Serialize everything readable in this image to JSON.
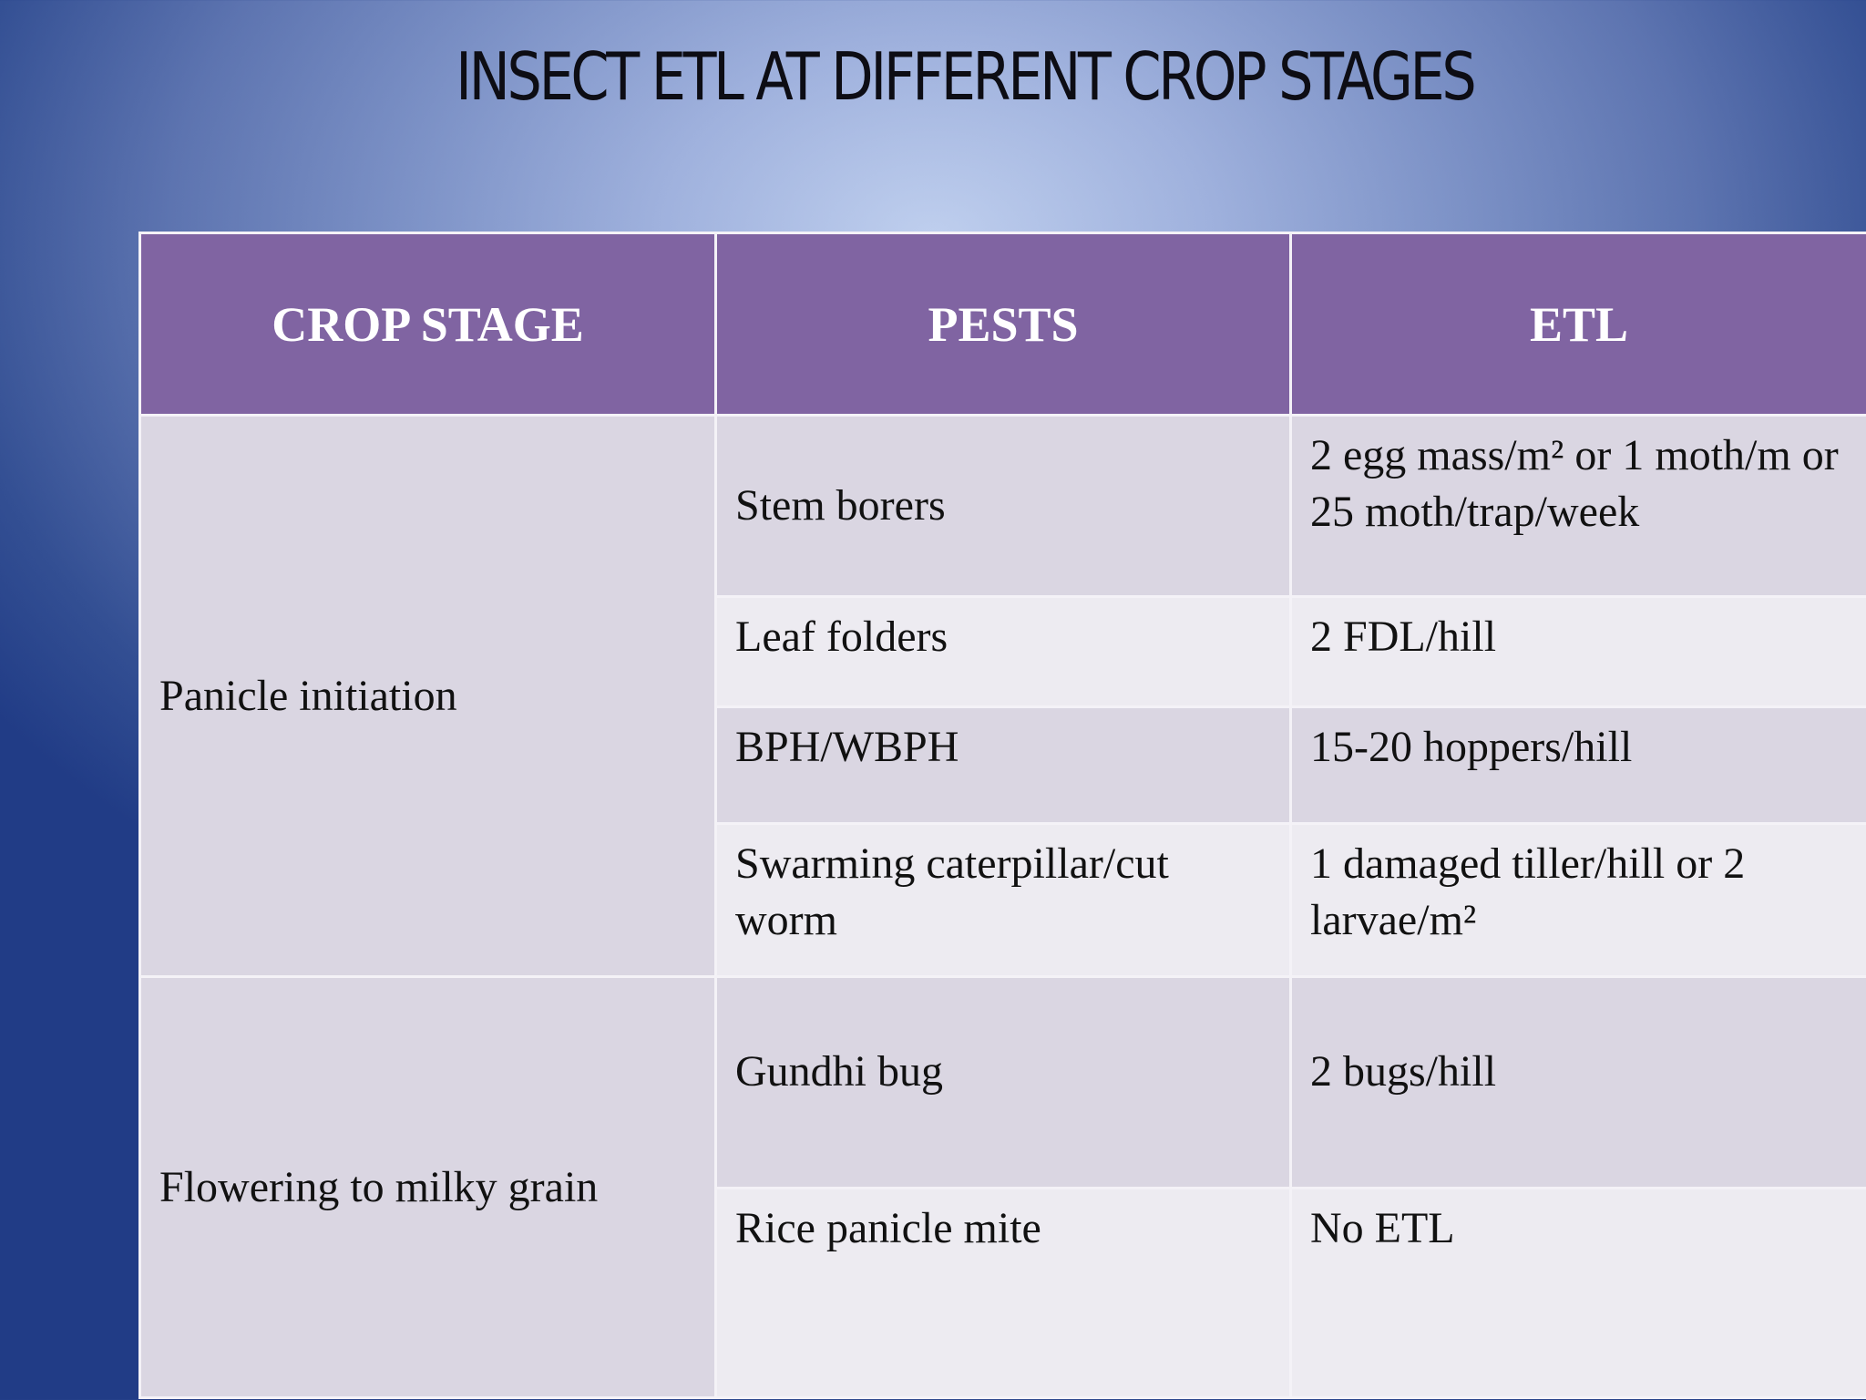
{
  "slide": {
    "title": "INSECT  ETL AT DIFFERENT CROP STAGES"
  },
  "table": {
    "headers": [
      "CROP STAGE",
      "PESTS",
      "ETL"
    ],
    "groups": [
      {
        "stage": "Panicle initiation",
        "rows": [
          {
            "pest": "Stem borers",
            "etl": "2 egg mass/m² or 1 moth/m or 25 moth/trap/week"
          },
          {
            "pest": "Leaf folders",
            "etl": "2 FDL/hill"
          },
          {
            "pest": "BPH/WBPH",
            "etl": "15-20 hoppers/hill"
          },
          {
            "pest": "Swarming caterpillar/cut worm",
            "etl": "1 damaged tiller/hill or 2 larvae/m²"
          }
        ]
      },
      {
        "stage": "Flowering to milky grain",
        "rows": [
          {
            "pest": "Gundhi bug",
            "etl": "2 bugs/hill"
          },
          {
            "pest": "Rice panicle mite",
            "etl": "No ETL"
          }
        ]
      }
    ]
  }
}
